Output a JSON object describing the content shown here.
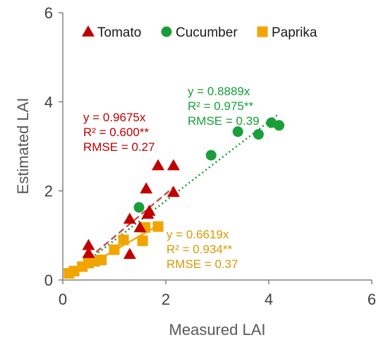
{
  "chart_data": {
    "type": "scatter",
    "xlabel": "Measured LAI",
    "ylabel": "Estimated LAI",
    "xlim": [
      0,
      6
    ],
    "ylim": [
      0,
      6
    ],
    "xticks": [
      "0",
      "2",
      "4",
      "6"
    ],
    "yticks": [
      "0",
      "2",
      "4",
      "6"
    ],
    "legend_position": "top",
    "series": [
      {
        "name": "Tomato",
        "marker": "triangle",
        "color": "#c00000",
        "points": [
          [
            0.5,
            0.6
          ],
          [
            0.5,
            0.78
          ],
          [
            1.3,
            0.58
          ],
          [
            1.3,
            1.37
          ],
          [
            1.5,
            1.18
          ],
          [
            1.65,
            1.48
          ],
          [
            1.68,
            1.55
          ],
          [
            1.62,
            2.05
          ],
          [
            1.85,
            2.57
          ],
          [
            2.15,
            2.57
          ],
          [
            2.15,
            1.97
          ]
        ],
        "fit": {
          "slope": 0.9675,
          "x_range": [
            0.5,
            2.15
          ],
          "color": "#c0504d",
          "style": "dashed"
        },
        "annotation": [
          "y = 0.9675x",
          "R² = 0.600**",
          "RMSE = 0.27"
        ]
      },
      {
        "name": "Cucumber",
        "marker": "circle",
        "color": "#1a9e3a",
        "points": [
          [
            1.48,
            1.63
          ],
          [
            2.88,
            2.8
          ],
          [
            3.4,
            3.33
          ],
          [
            3.8,
            3.27
          ],
          [
            4.05,
            3.53
          ],
          [
            4.2,
            3.47
          ]
        ],
        "fit": {
          "slope": 0.8889,
          "x_range": [
            0.1,
            4.2
          ],
          "color": "#1a9e3a",
          "style": "dotted"
        },
        "annotation": [
          "y = 0.8889x",
          "R² = 0.975**",
          "RMSE = 0.39"
        ]
      },
      {
        "name": "Paprika",
        "marker": "square",
        "color": "#f2a500",
        "points": [
          [
            0.12,
            0.15
          ],
          [
            0.22,
            0.2
          ],
          [
            0.38,
            0.3
          ],
          [
            0.5,
            0.38
          ],
          [
            0.62,
            0.42
          ],
          [
            0.75,
            0.45
          ],
          [
            1.0,
            0.68
          ],
          [
            1.18,
            0.9
          ],
          [
            1.55,
            0.88
          ],
          [
            1.6,
            1.18
          ],
          [
            1.85,
            1.2
          ]
        ],
        "fit": {
          "slope": 0.6619,
          "x_range": [
            0.1,
            1.85
          ],
          "color": "#f2a500",
          "style": "solid"
        },
        "annotation": [
          "y = 0.6619x",
          "R² = 0.934**",
          "RMSE = 0.37"
        ]
      }
    ]
  }
}
